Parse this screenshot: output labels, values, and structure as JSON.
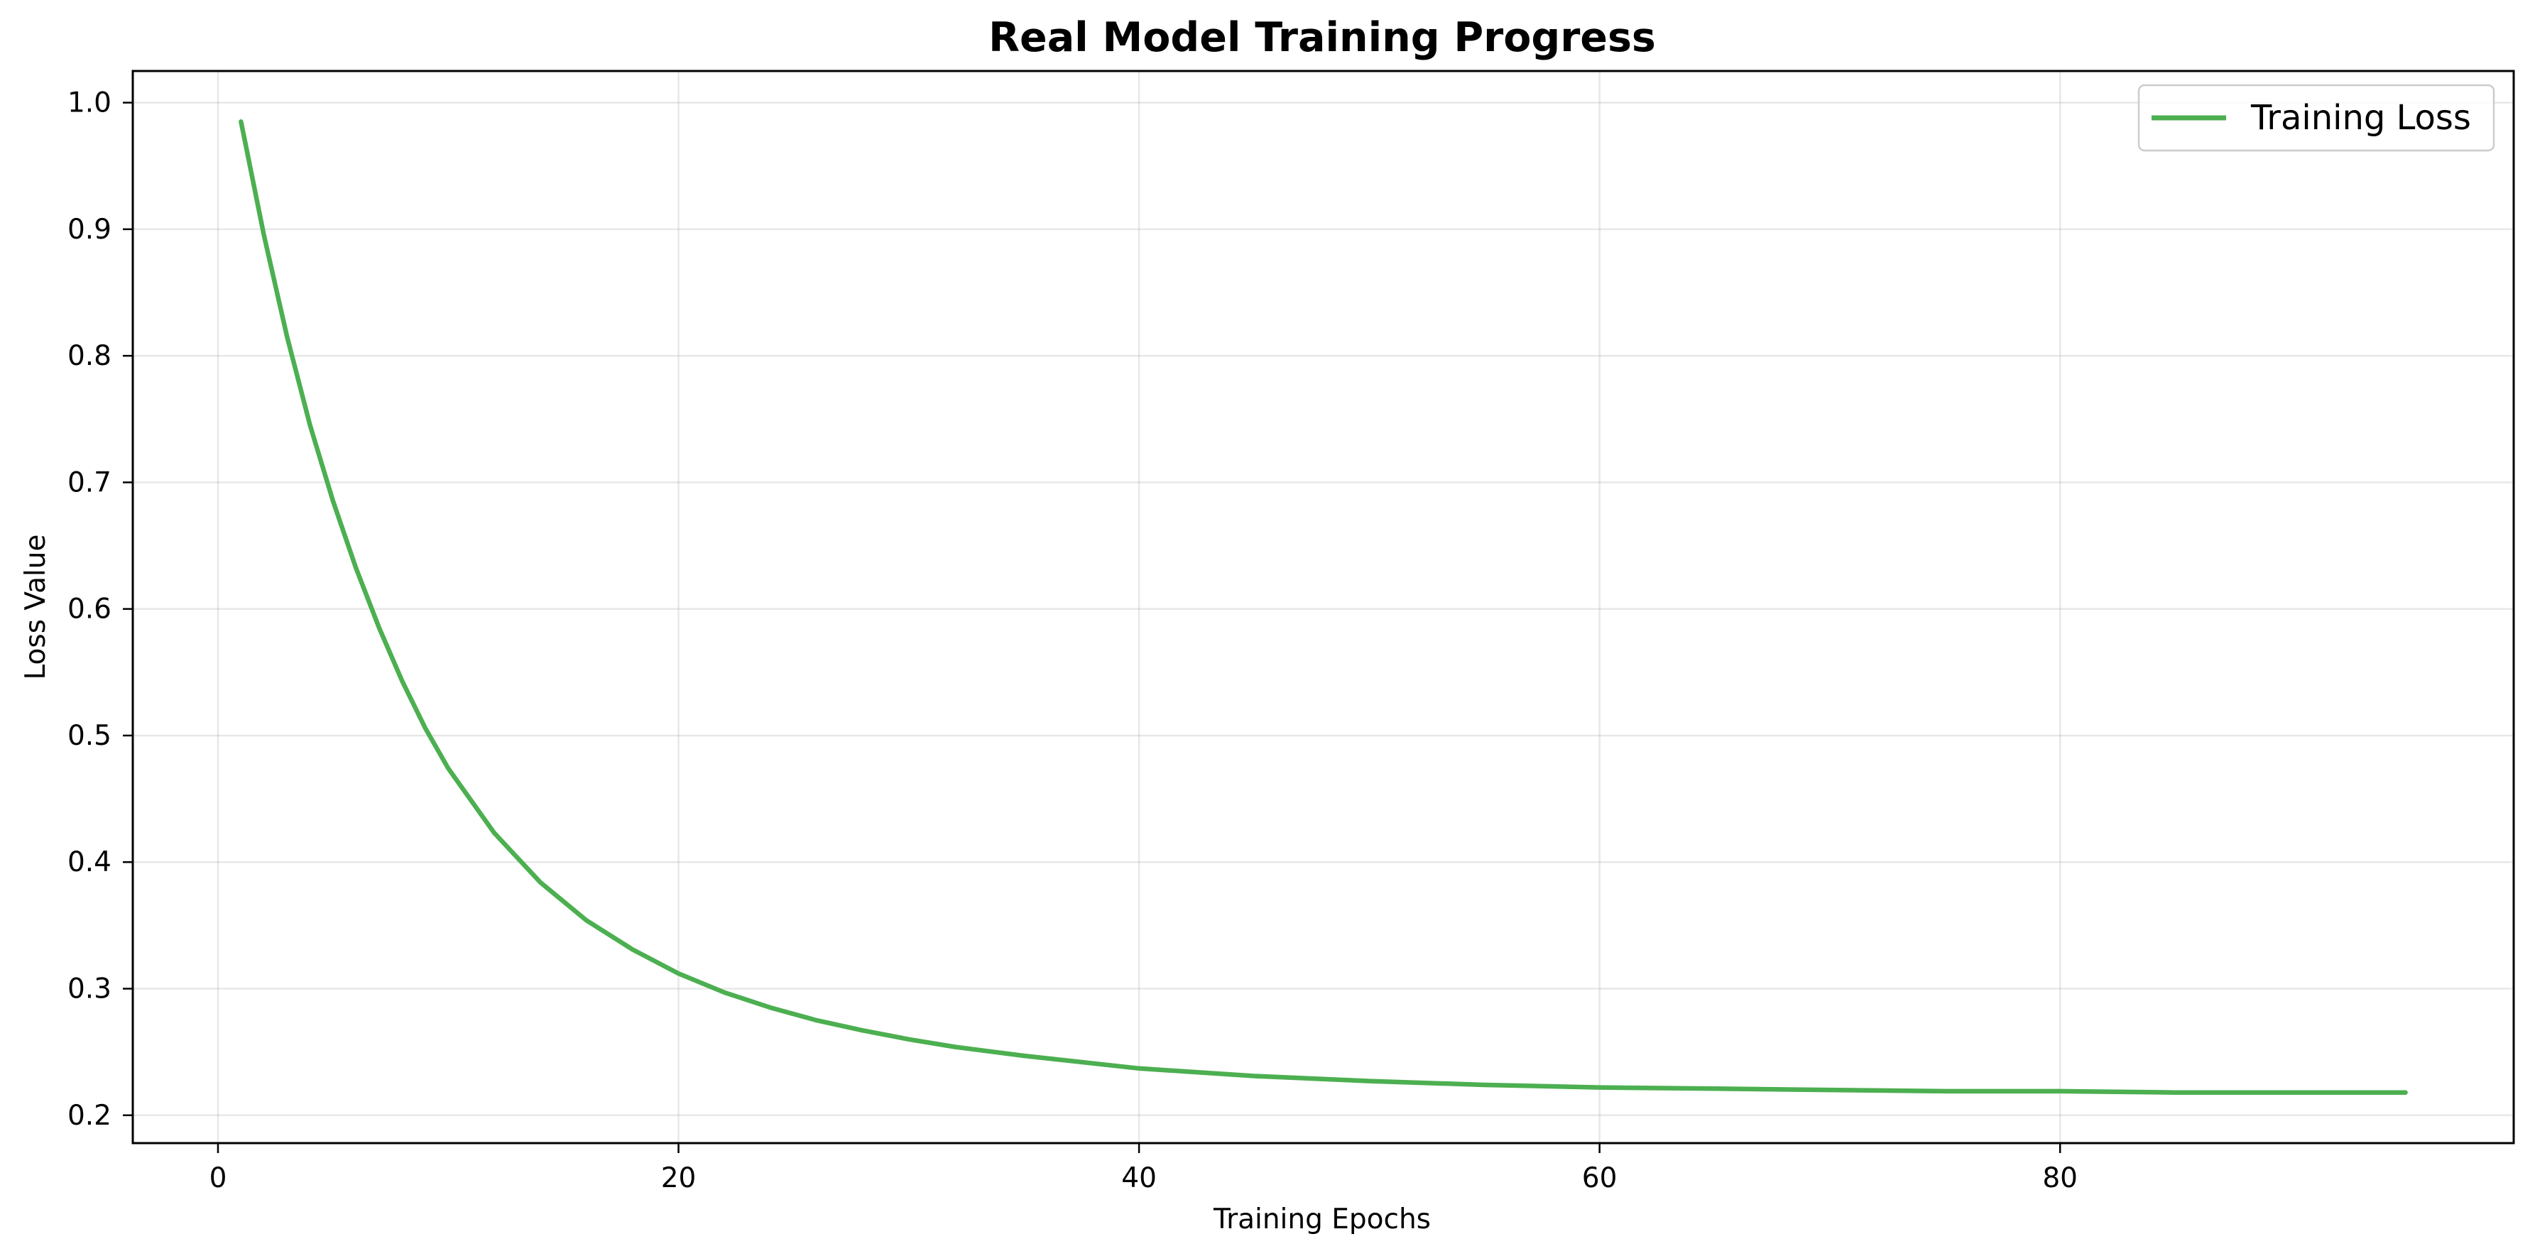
{
  "chart_data": {
    "type": "line",
    "title": "Real Model Training Progress",
    "xlabel": "Training Epochs",
    "ylabel": "Loss Value",
    "xlim": [
      -3.7,
      99.7
    ],
    "ylim": [
      0.178,
      1.025
    ],
    "xticks": [
      0,
      20,
      40,
      60,
      80
    ],
    "yticks": [
      0.2,
      0.3,
      0.4,
      0.5,
      0.6,
      0.7,
      0.8,
      0.9,
      1.0
    ],
    "grid": true,
    "legend_position": "top-right",
    "series": [
      {
        "name": "Training Loss",
        "color": "#4caf50",
        "x": [
          1,
          2,
          3,
          4,
          5,
          6,
          7,
          8,
          9,
          10,
          12,
          14,
          16,
          18,
          20,
          22,
          24,
          26,
          28,
          30,
          32,
          35,
          38,
          40,
          45,
          50,
          55,
          60,
          65,
          70,
          75,
          80,
          85,
          90,
          95
        ],
        "y": [
          0.985,
          0.895,
          0.815,
          0.745,
          0.685,
          0.632,
          0.585,
          0.543,
          0.506,
          0.474,
          0.423,
          0.384,
          0.354,
          0.331,
          0.312,
          0.297,
          0.285,
          0.275,
          0.267,
          0.26,
          0.254,
          0.247,
          0.241,
          0.237,
          0.231,
          0.227,
          0.224,
          0.222,
          0.221,
          0.22,
          0.219,
          0.219,
          0.218,
          0.218,
          0.218
        ]
      }
    ]
  }
}
